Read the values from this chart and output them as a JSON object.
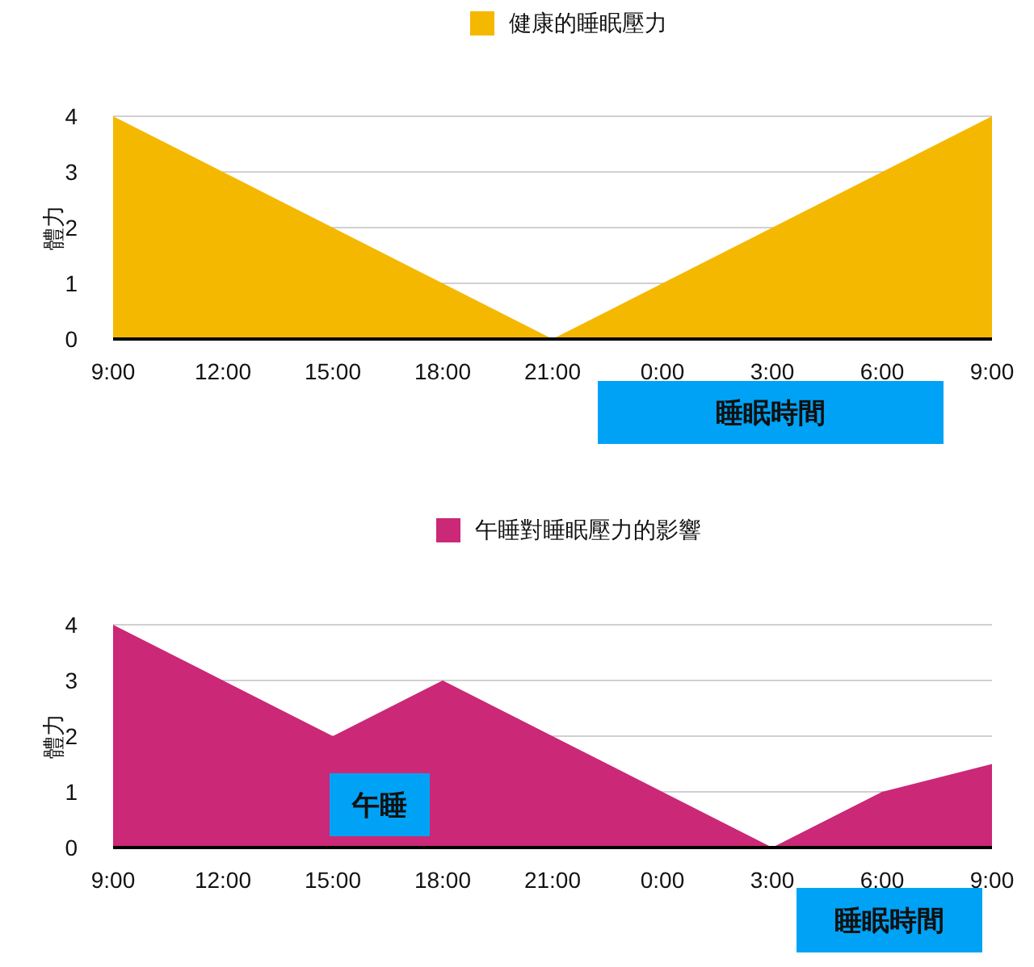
{
  "chart_data": [
    {
      "type": "area",
      "ylabel": "體力",
      "categories": [
        "9:00",
        "12:00",
        "15:00",
        "18:00",
        "21:00",
        "0:00",
        "3:00",
        "6:00",
        "9:00"
      ],
      "series": [
        {
          "name": "健康的睡眠壓力",
          "color": "#f5b800",
          "values": [
            4,
            3,
            2,
            1,
            0,
            1,
            2,
            3,
            4
          ]
        }
      ],
      "ylim": [
        0,
        4
      ],
      "yticks": [
        0,
        1,
        2,
        3,
        4
      ],
      "grid": "y",
      "legend": "top",
      "annotations": [
        "睡眠時間"
      ]
    },
    {
      "type": "area",
      "ylabel": "體力",
      "categories": [
        "9:00",
        "12:00",
        "15:00",
        "18:00",
        "21:00",
        "0:00",
        "3:00",
        "6:00",
        "9:00"
      ],
      "series": [
        {
          "name": "午睡對睡眠壓力的影響",
          "color": "#cb2877",
          "values": [
            4,
            3,
            2,
            3,
            2,
            1,
            0,
            1,
            1.5
          ]
        }
      ],
      "ylim": [
        0,
        4
      ],
      "yticks": [
        0,
        1,
        2,
        3,
        4
      ],
      "grid": "y",
      "legend": "top",
      "annotations": [
        "午睡",
        "睡眠時間"
      ]
    }
  ]
}
